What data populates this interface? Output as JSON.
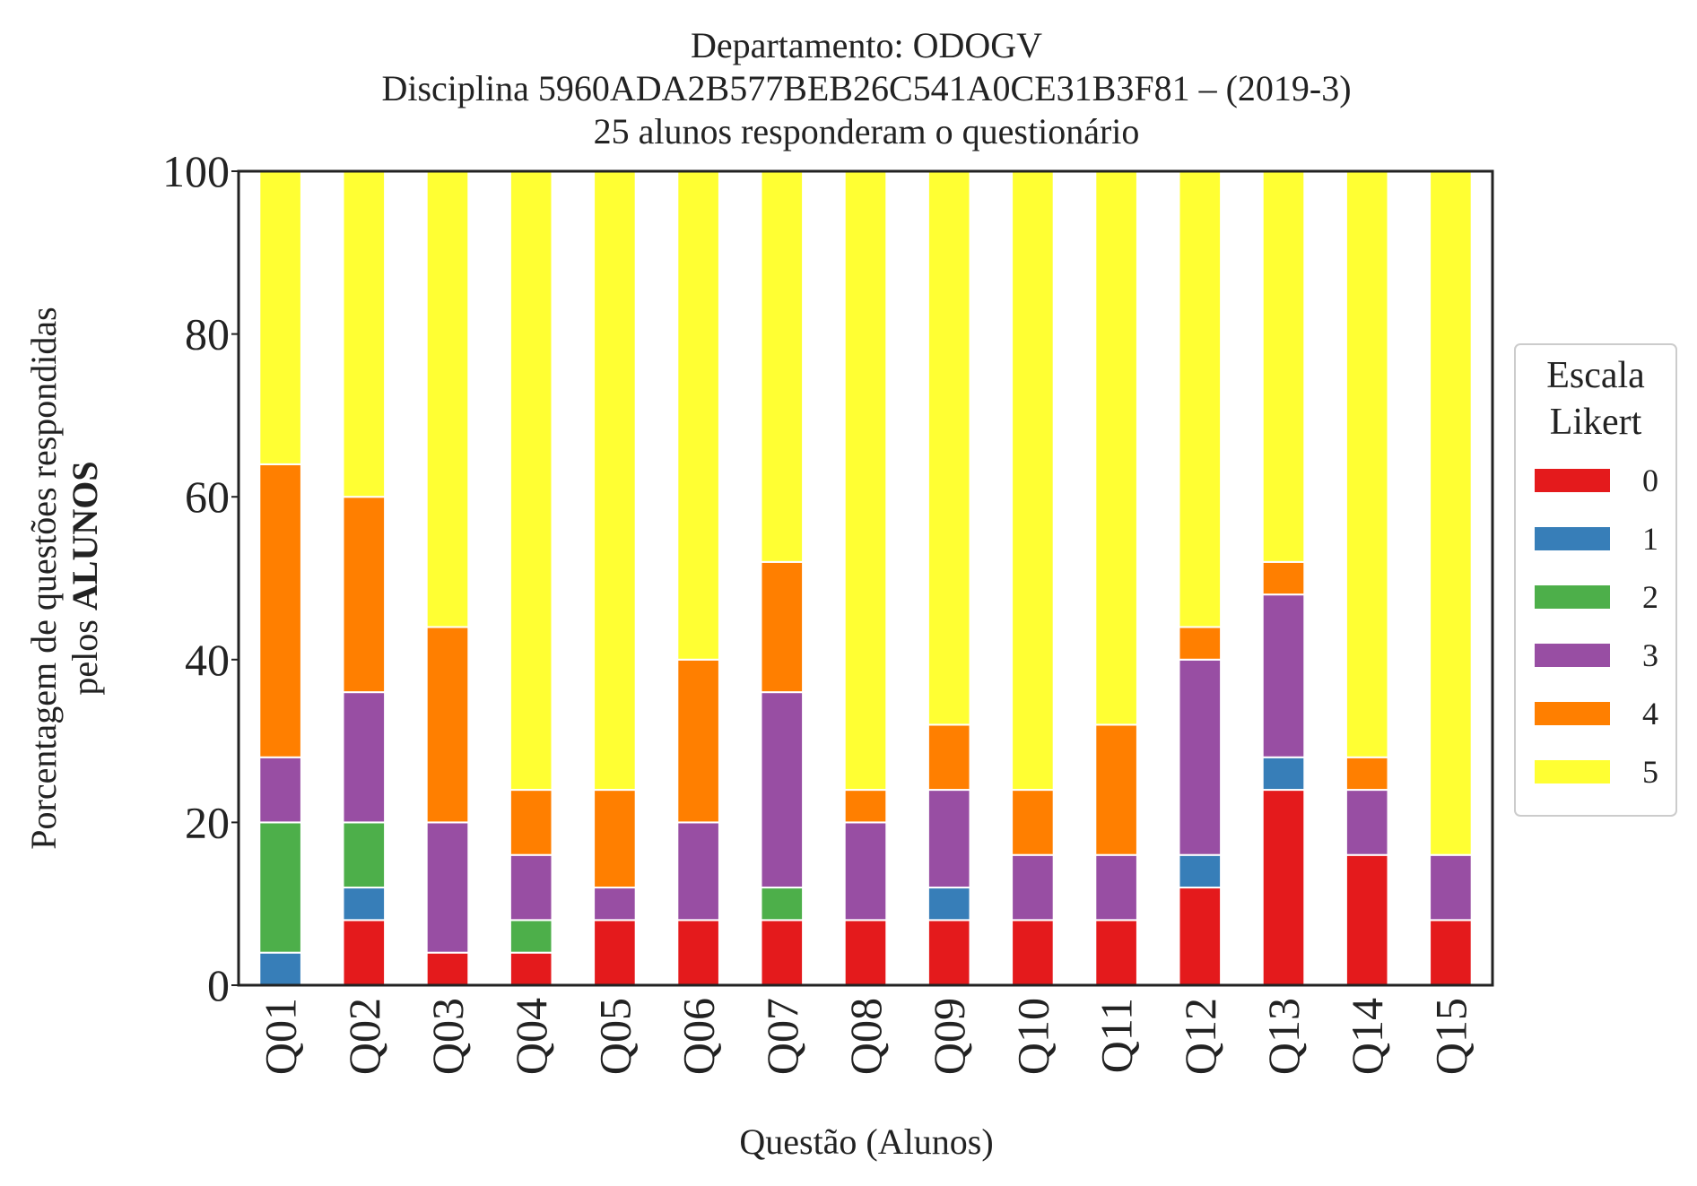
{
  "chart_data": {
    "type": "bar",
    "stacked": true,
    "title_lines": [
      "Departamento: ODOGV",
      "Disciplina 5960ADA2B577BEB26C541A0CE31B3F81 – (2019-3)",
      "25 alunos responderam o questionário"
    ],
    "xlabel": "Questão (Alunos)",
    "ylabel_line1": "Porcentagem de questões respondidas",
    "ylabel_line2_prefix": "pelos ",
    "ylabel_line2_bold": "ALUNOS",
    "ylim": [
      0,
      100
    ],
    "yticks": [
      0,
      20,
      40,
      60,
      80,
      100
    ],
    "grid": false,
    "legend": {
      "title_lines": [
        "Escala",
        "Likert"
      ],
      "placement": "center-right"
    },
    "categories": [
      "Q01",
      "Q02",
      "Q03",
      "Q04",
      "Q05",
      "Q06",
      "Q07",
      "Q08",
      "Q09",
      "Q10",
      "Q11",
      "Q12",
      "Q13",
      "Q14",
      "Q15"
    ],
    "series": [
      {
        "name": "0",
        "color": "#e41a1c",
        "values": [
          0,
          8,
          4,
          4,
          8,
          8,
          8,
          8,
          8,
          8,
          8,
          12,
          24,
          16,
          8
        ]
      },
      {
        "name": "1",
        "color": "#377eb8",
        "values": [
          4,
          4,
          0,
          0,
          0,
          0,
          0,
          0,
          4,
          0,
          0,
          4,
          4,
          0,
          0
        ]
      },
      {
        "name": "2",
        "color": "#4daf4a",
        "values": [
          16,
          8,
          0,
          4,
          0,
          0,
          4,
          0,
          0,
          0,
          0,
          0,
          0,
          0,
          0
        ]
      },
      {
        "name": "3",
        "color": "#984ea3",
        "values": [
          8,
          16,
          16,
          8,
          4,
          12,
          24,
          12,
          12,
          8,
          8,
          24,
          20,
          8,
          8
        ]
      },
      {
        "name": "4",
        "color": "#ff7f00",
        "values": [
          36,
          24,
          24,
          8,
          12,
          20,
          16,
          4,
          8,
          8,
          16,
          4,
          4,
          4,
          0
        ]
      },
      {
        "name": "5",
        "color": "#ffff33",
        "values": [
          36,
          40,
          56,
          76,
          76,
          60,
          48,
          76,
          68,
          76,
          68,
          56,
          48,
          72,
          84
        ]
      }
    ]
  }
}
